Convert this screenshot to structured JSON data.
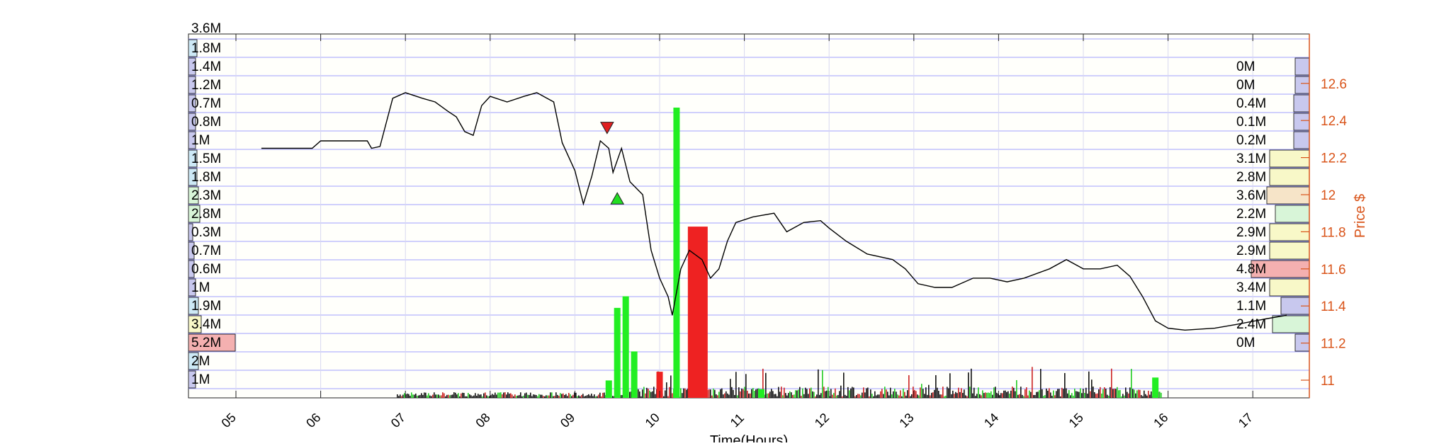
{
  "chart_data": {
    "type": "line",
    "xlabel": "Time(Hours)",
    "ylabel": "Price $",
    "x_ticks": [
      "05",
      "06",
      "07",
      "08",
      "09",
      "10",
      "11",
      "12",
      "13",
      "14",
      "15",
      "16",
      "17"
    ],
    "y_ticks": [
      "11",
      "11.2",
      "11.4",
      "11.6",
      "11.8",
      "12",
      "12.2",
      "12.4",
      "12.6"
    ],
    "xlim": [
      4.55,
      17.7
    ],
    "ylim": [
      10.9,
      12.75
    ],
    "grid": true,
    "top_label": "3.6M",
    "volume_profile_left": [
      "1.8M",
      "1.4M",
      "1.2M",
      "0.7M",
      "0.8M",
      "1M",
      "1.5M",
      "1.8M",
      "2.3M",
      "2.8M",
      "0.3M",
      "0.7M",
      "0.6M",
      "1M",
      "1.9M",
      "3.4M",
      "5.2M",
      "2M",
      "1M"
    ],
    "volume_profile_right": [
      "0M",
      "0M",
      "0.4M",
      "0.1M",
      "0.2M",
      "3.1M",
      "2.8M",
      "3.6M",
      "2.2M",
      "2.9M",
      "2.9M",
      "4.8M",
      "3.4M",
      "1.1M",
      "2.4M",
      "0M"
    ],
    "price_series": [
      [
        5.3,
        12.25
      ],
      [
        5.9,
        12.25
      ],
      [
        6.0,
        12.29
      ],
      [
        6.55,
        12.29
      ],
      [
        6.6,
        12.25
      ],
      [
        6.7,
        12.26
      ],
      [
        6.85,
        12.52
      ],
      [
        7.0,
        12.55
      ],
      [
        7.2,
        12.52
      ],
      [
        7.35,
        12.5
      ],
      [
        7.5,
        12.45
      ],
      [
        7.6,
        12.42
      ],
      [
        7.7,
        12.34
      ],
      [
        7.8,
        12.32
      ],
      [
        7.9,
        12.48
      ],
      [
        8.0,
        12.53
      ],
      [
        8.2,
        12.5
      ],
      [
        8.4,
        12.53
      ],
      [
        8.55,
        12.55
      ],
      [
        8.75,
        12.5
      ],
      [
        8.85,
        12.28
      ],
      [
        9.0,
        12.13
      ],
      [
        9.1,
        11.95
      ],
      [
        9.2,
        12.1
      ],
      [
        9.3,
        12.29
      ],
      [
        9.4,
        12.25
      ],
      [
        9.45,
        12.12
      ],
      [
        9.55,
        12.25
      ],
      [
        9.65,
        12.07
      ],
      [
        9.8,
        12.0
      ],
      [
        9.9,
        11.7
      ],
      [
        10.0,
        11.55
      ],
      [
        10.1,
        11.45
      ],
      [
        10.15,
        11.35
      ],
      [
        10.25,
        11.6
      ],
      [
        10.35,
        11.7
      ],
      [
        10.5,
        11.65
      ],
      [
        10.6,
        11.55
      ],
      [
        10.7,
        11.6
      ],
      [
        10.8,
        11.75
      ],
      [
        10.9,
        11.85
      ],
      [
        11.1,
        11.88
      ],
      [
        11.35,
        11.9
      ],
      [
        11.5,
        11.8
      ],
      [
        11.7,
        11.85
      ],
      [
        11.9,
        11.86
      ],
      [
        12.0,
        11.82
      ],
      [
        12.2,
        11.75
      ],
      [
        12.45,
        11.68
      ],
      [
        12.75,
        11.65
      ],
      [
        12.9,
        11.6
      ],
      [
        13.05,
        11.52
      ],
      [
        13.25,
        11.5
      ],
      [
        13.45,
        11.5
      ],
      [
        13.7,
        11.55
      ],
      [
        13.9,
        11.55
      ],
      [
        14.1,
        11.53
      ],
      [
        14.3,
        11.55
      ],
      [
        14.6,
        11.6
      ],
      [
        14.8,
        11.65
      ],
      [
        15.0,
        11.6
      ],
      [
        15.2,
        11.6
      ],
      [
        15.4,
        11.62
      ],
      [
        15.55,
        11.56
      ],
      [
        15.7,
        11.45
      ],
      [
        15.85,
        11.32
      ],
      [
        16.0,
        11.28
      ],
      [
        16.2,
        11.27
      ],
      [
        16.55,
        11.28
      ],
      [
        16.8,
        11.3
      ],
      [
        17.15,
        11.33
      ],
      [
        17.4,
        11.35
      ]
    ],
    "markers": [
      {
        "type": "sell",
        "x": 9.38,
        "y": 12.36,
        "color": "#e02020"
      },
      {
        "type": "buy",
        "x": 9.5,
        "y": 11.98,
        "color": "#22dd22"
      }
    ],
    "volume_bars": [
      {
        "x": 9.4,
        "value": 0.06,
        "color": "#22ee22"
      },
      {
        "x": 9.5,
        "value": 0.31,
        "color": "#22ee22"
      },
      {
        "x": 9.6,
        "value": 0.35,
        "color": "#22ee22"
      },
      {
        "x": 9.7,
        "value": 0.16,
        "color": "#22ee22"
      },
      {
        "x": 10.0,
        "value": 0.09,
        "color": "#ee2222"
      },
      {
        "x": 10.2,
        "value": 1.0,
        "color": "#22ee22"
      },
      {
        "x": 10.45,
        "value": 0.59,
        "color": "#ee2222"
      },
      {
        "x": 11.2,
        "value": 0.03,
        "color": "#22ee22"
      },
      {
        "x": 15.85,
        "value": 0.07,
        "color": "#22ee22"
      }
    ],
    "colors": {
      "price": "#000000",
      "axis_right": "#d9541a",
      "up": "#22ee22",
      "down": "#ee2222",
      "grid": "#4040ff",
      "profile_blue": "#c8c8ee",
      "profile_cyan": "#cde9f6",
      "profile_green": "#d8f5d8",
      "profile_yellow": "#f8f8c8",
      "profile_peach": "#f6e4c8",
      "profile_red": "#f4b0b0"
    }
  }
}
